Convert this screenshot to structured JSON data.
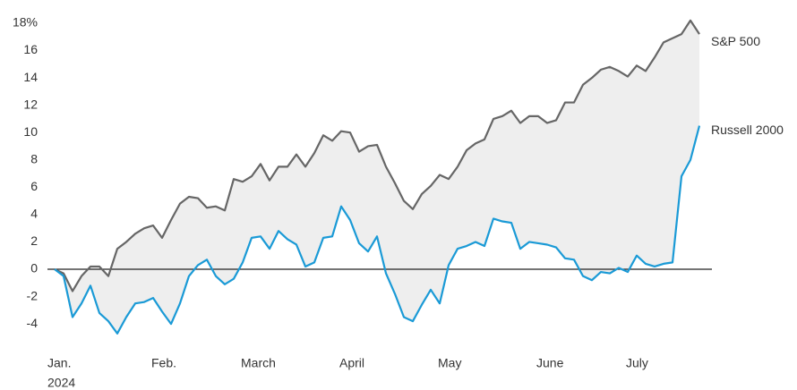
{
  "chart_data": {
    "type": "line",
    "categories": [
      "Jan.",
      null,
      null,
      null,
      null,
      null,
      null,
      null,
      null,
      null,
      null,
      "Feb.",
      null,
      null,
      null,
      null,
      null,
      null,
      null,
      null,
      null,
      "March",
      null,
      null,
      null,
      null,
      null,
      null,
      null,
      null,
      null,
      null,
      "April",
      null,
      null,
      null,
      null,
      null,
      null,
      null,
      null,
      null,
      null,
      "May",
      null,
      null,
      null,
      null,
      null,
      null,
      null,
      null,
      null,
      null,
      "June",
      null,
      null,
      null,
      null,
      null,
      null,
      null,
      null,
      null,
      "July",
      null,
      null,
      null,
      null,
      null,
      null,
      null,
      null
    ],
    "year_label": "2024",
    "series": [
      {
        "name": "S&P 500",
        "color": "#666666",
        "values": [
          0,
          -0.3,
          -1.6,
          -0.5,
          0.2,
          0.2,
          -0.5,
          1.5,
          2.0,
          2.6,
          3.0,
          3.2,
          2.3,
          3.6,
          4.8,
          5.3,
          5.2,
          4.5,
          4.6,
          4.3,
          6.6,
          6.4,
          6.8,
          7.7,
          6.5,
          7.5,
          7.5,
          8.4,
          7.5,
          8.5,
          9.8,
          9.4,
          10.1,
          10.0,
          8.6,
          9.0,
          9.1,
          7.5,
          6.3,
          5.0,
          4.4,
          5.5,
          6.1,
          6.9,
          6.6,
          7.5,
          8.7,
          9.2,
          9.5,
          11.0,
          11.2,
          11.6,
          10.7,
          11.2,
          11.2,
          10.7,
          10.9,
          12.2,
          12.2,
          13.5,
          14.0,
          14.6,
          14.8,
          14.5,
          14.1,
          14.9,
          14.5,
          15.5,
          16.6,
          16.9,
          17.2,
          18.2,
          17.2
        ]
      },
      {
        "name": "Russell 2000",
        "color": "#1a9ad6",
        "values": [
          0,
          -0.5,
          -3.5,
          -2.5,
          -1.2,
          -3.2,
          -3.8,
          -4.7,
          -3.5,
          -2.5,
          -2.4,
          -2.1,
          -3.1,
          -4.0,
          -2.5,
          -0.5,
          0.3,
          0.7,
          -0.5,
          -1.1,
          -0.7,
          0.5,
          2.3,
          2.4,
          1.5,
          2.8,
          2.2,
          1.8,
          0.2,
          0.5,
          2.3,
          2.4,
          4.6,
          3.6,
          1.9,
          1.3,
          2.4,
          -0.3,
          -1.8,
          -3.5,
          -3.8,
          -2.6,
          -1.5,
          -2.5,
          0.3,
          1.5,
          1.7,
          2.0,
          1.7,
          3.7,
          3.5,
          3.4,
          1.5,
          2.0,
          1.9,
          1.8,
          1.6,
          0.8,
          0.7,
          -0.5,
          -0.8,
          -0.2,
          -0.3,
          0.1,
          -0.2,
          1.0,
          0.4,
          0.2,
          0.4,
          0.5,
          6.8,
          8.0,
          10.5
        ]
      }
    ],
    "ylim": [
      -6,
      19.5
    ],
    "yticks": [
      {
        "value": 18,
        "label": "18%"
      },
      16,
      14,
      12,
      10,
      8,
      6,
      4,
      2,
      0,
      -2,
      -4
    ],
    "grid": false,
    "zero_line": true,
    "fill_between": "#eeeeee"
  }
}
